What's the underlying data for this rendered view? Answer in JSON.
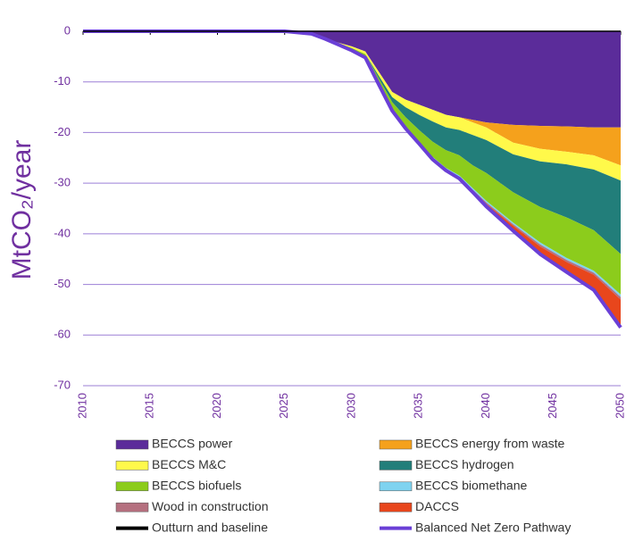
{
  "chart_data": {
    "type": "area",
    "stacked": true,
    "y_label": "MtCO₂/year",
    "x": [
      2010,
      2020,
      2025,
      2027,
      2028,
      2030,
      2031,
      2032,
      2033,
      2034,
      2035,
      2036,
      2037,
      2038,
      2039,
      2040,
      2042,
      2044,
      2046,
      2048,
      2050
    ],
    "xlim": [
      2010,
      2050
    ],
    "xticks": [
      2010,
      2015,
      2020,
      2025,
      2030,
      2035,
      2040,
      2045,
      2050
    ],
    "ylim": [
      -70,
      0
    ],
    "yticks": [
      0,
      -10,
      -20,
      -30,
      -40,
      -50,
      -60,
      -70
    ],
    "grid": true,
    "series": [
      {
        "name": "BECCS power",
        "type": "area",
        "color": "#5b2c9a",
        "values": [
          0,
          0,
          0,
          -0.5,
          -1.5,
          -3,
          -4,
          -8,
          -12,
          -13.5,
          -14.5,
          -15.5,
          -16.5,
          -17,
          -17.5,
          -18,
          -18.5,
          -18.7,
          -18.8,
          -19,
          -19
        ]
      },
      {
        "name": "BECCS energy from waste",
        "type": "area",
        "color": "#f5a11c",
        "values": [
          0,
          0,
          0,
          0,
          0,
          0,
          0,
          0,
          0,
          0,
          0,
          0,
          0,
          0,
          -0.5,
          -1,
          -3.5,
          -4.5,
          -5,
          -5.5,
          -7.5
        ]
      },
      {
        "name": "BECCS M&C",
        "type": "area",
        "color": "#fff94a",
        "values": [
          0,
          0,
          0,
          0,
          0,
          -0.3,
          -0.5,
          -0.8,
          -1,
          -1.5,
          -2,
          -2.3,
          -2.5,
          -2.5,
          -2.5,
          -2.5,
          -2.3,
          -2.5,
          -2.5,
          -2.8,
          -3
        ]
      },
      {
        "name": "BECCS hydrogen",
        "type": "area",
        "color": "#227e7a",
        "values": [
          0,
          0,
          0,
          0,
          0,
          0,
          0,
          -0.5,
          -1,
          -2,
          -3,
          -4,
          -4.5,
          -5,
          -6,
          -6.5,
          -7.5,
          -9,
          -10.5,
          -12,
          -14.5
        ]
      },
      {
        "name": "BECCS biofuels",
        "type": "area",
        "color": "#8ccc1c",
        "values": [
          0,
          0,
          0,
          0,
          0,
          -0.3,
          -0.5,
          -1,
          -1.5,
          -2,
          -2.5,
          -3,
          -3.5,
          -4,
          -4.5,
          -5.5,
          -6,
          -7,
          -8,
          -8,
          -8
        ]
      },
      {
        "name": "BECCS biomethane",
        "type": "area",
        "color": "#7fd3f0",
        "values": [
          0,
          0,
          0,
          0,
          0,
          0,
          0,
          0,
          0,
          0,
          0,
          -0.2,
          -0.2,
          -0.3,
          -0.3,
          -0.3,
          -0.3,
          -0.4,
          -0.4,
          -0.4,
          -0.5
        ]
      },
      {
        "name": "Wood in construction",
        "type": "area",
        "color": "#b5707f",
        "values": [
          0,
          0,
          0,
          0,
          0,
          -0.2,
          -0.2,
          -0.2,
          -0.2,
          -0.2,
          -0.2,
          -0.3,
          -0.3,
          -0.3,
          -0.3,
          -0.3,
          -0.3,
          -0.4,
          -0.4,
          -0.4,
          -0.5
        ]
      },
      {
        "name": "DACCS",
        "type": "area",
        "color": "#e8461c",
        "values": [
          0,
          0,
          0,
          0,
          0,
          0,
          0,
          0,
          0,
          0,
          0,
          0,
          0,
          0,
          -0.2,
          -0.5,
          -1,
          -1.5,
          -2,
          -3,
          -5.5
        ]
      },
      {
        "name": "Outturn and baseline",
        "type": "line",
        "color": "#000000",
        "values": [
          0,
          0,
          0,
          null,
          null,
          null,
          null,
          null,
          null,
          null,
          null,
          null,
          null,
          null,
          null,
          null,
          null,
          null,
          null,
          null,
          null
        ]
      },
      {
        "name": "Balanced Net Zero Pathway",
        "type": "line",
        "color": "#6a3fd6",
        "values": [
          0,
          0,
          0,
          -0.5,
          -1.5,
          -3.8,
          -5.2,
          -10.5,
          -15.7,
          -19.2,
          -22.2,
          -25.3,
          -27.5,
          -29.1,
          -31.8,
          -34.6,
          -39.4,
          -44,
          -47.6,
          -51.1,
          -58.5
        ]
      }
    ]
  }
}
